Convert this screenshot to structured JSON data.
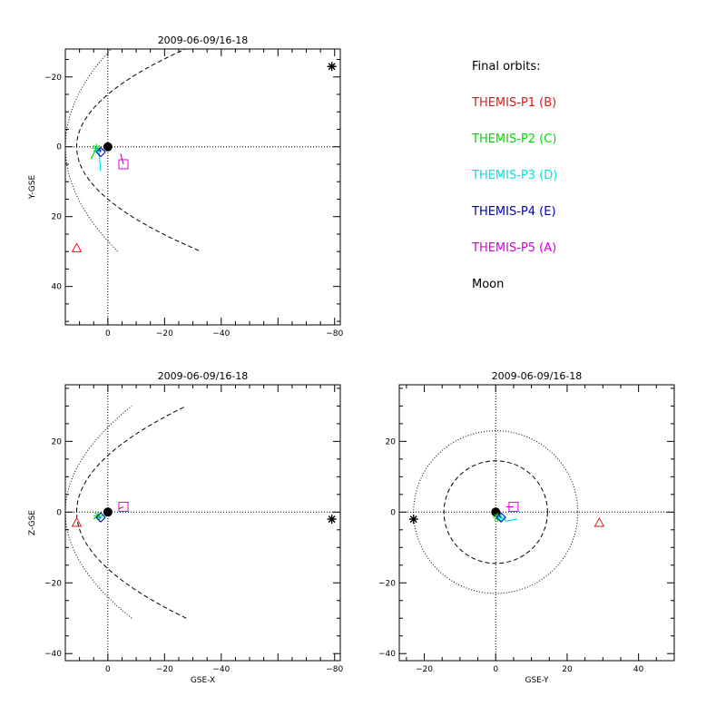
{
  "legend": {
    "title": "Final orbits:",
    "items": [
      {
        "label": "THEMIS-P1 (B)",
        "color": "#e31a1c"
      },
      {
        "label": "THEMIS-P2 (C)",
        "color": "#00dd00"
      },
      {
        "label": "THEMIS-P3 (D)",
        "color": "#00e5e5"
      },
      {
        "label": "THEMIS-P4 (E)",
        "color": "#0000c8"
      },
      {
        "label": "THEMIS-P5 (A)",
        "color": "#dd00dd"
      },
      {
        "label": "Moon",
        "color": "#000000"
      }
    ]
  },
  "chart_data": [
    {
      "type": "scatter",
      "title": "2009-06-09/16-18",
      "xlabel": "",
      "ylabel": "Y-GSE",
      "xlim": [
        15,
        -82
      ],
      "ylim": [
        -28,
        51
      ],
      "x_reversed": true,
      "y_reversed": true,
      "xticks": [
        0,
        -20,
        -40,
        -80
      ],
      "yticks": [
        -20,
        0,
        20,
        40
      ],
      "grid": false,
      "earth": [
        0,
        0
      ],
      "boundaries": [
        {
          "kind": "bow-shock",
          "style": "dotted",
          "nose": 15,
          "flank_at_earth": 27
        },
        {
          "kind": "magnetopause",
          "style": "dashed",
          "nose": 11,
          "flank_at_earth": 15
        }
      ],
      "series": [
        {
          "name": "THEMIS-P1 (B)",
          "marker": "triangle",
          "color": "#e31a1c",
          "points": [
            [
              11,
              29
            ]
          ]
        },
        {
          "name": "THEMIS-P2 (C)",
          "marker": "asterisk",
          "color": "#00dd00",
          "points": [
            [
              4,
              0.5
            ]
          ],
          "track": [
            [
              6,
              3.5
            ],
            [
              5,
              2
            ],
            [
              4,
              0.5
            ]
          ]
        },
        {
          "name": "THEMIS-P3 (D)",
          "marker": "cross",
          "color": "#00e5e5",
          "points": [
            [
              3,
              1
            ]
          ],
          "track": [
            [
              4,
              0
            ],
            [
              3,
              3
            ],
            [
              2.5,
              7
            ]
          ]
        },
        {
          "name": "THEMIS-P4 (E)",
          "marker": "diamond",
          "color": "#0000c8",
          "points": [
            [
              2.5,
              1.5
            ]
          ],
          "track": [
            [
              3,
              0.5
            ],
            [
              2.5,
              1.5
            ]
          ]
        },
        {
          "name": "THEMIS-P5 (A)",
          "marker": "square",
          "color": "#dd00dd",
          "points": [
            [
              -5.5,
              5
            ]
          ],
          "track": [
            [
              -4.5,
              2
            ],
            [
              -5.5,
              5
            ]
          ]
        },
        {
          "name": "Moon",
          "marker": "star",
          "color": "#000000",
          "points": [
            [
              -79,
              -23
            ]
          ]
        }
      ]
    },
    {
      "type": "scatter",
      "title": "2009-06-09/16-18",
      "xlabel": "GSE-X",
      "ylabel": "Z-GSE",
      "xlim": [
        15,
        -82
      ],
      "ylim": [
        -42,
        36
      ],
      "x_reversed": true,
      "y_reversed": false,
      "xticks": [
        0,
        -20,
        -40,
        -80
      ],
      "yticks": [
        -40,
        -20,
        0,
        20
      ],
      "grid": false,
      "earth": [
        0,
        0
      ],
      "boundaries": [
        {
          "kind": "bow-shock",
          "style": "dotted",
          "nose": 15,
          "flank_at_earth": 24
        },
        {
          "kind": "magnetopause",
          "style": "dashed",
          "nose": 11,
          "flank_at_earth": 16
        }
      ],
      "series": [
        {
          "name": "THEMIS-P1 (B)",
          "marker": "triangle",
          "color": "#e31a1c",
          "points": [
            [
              11,
              -3
            ]
          ]
        },
        {
          "name": "THEMIS-P2 (C)",
          "marker": "asterisk",
          "color": "#00dd00",
          "points": [
            [
              3.5,
              -1
            ]
          ],
          "track": [
            [
              5,
              -2
            ],
            [
              3.5,
              -1
            ]
          ]
        },
        {
          "name": "THEMIS-P3 (D)",
          "marker": "cross",
          "color": "#00e5e5",
          "points": [
            [
              3,
              -1.5
            ]
          ],
          "track": [
            [
              4,
              -2
            ],
            [
              3,
              -1.5
            ]
          ]
        },
        {
          "name": "THEMIS-P4 (E)",
          "marker": "diamond",
          "color": "#0000c8",
          "points": [
            [
              2.5,
              -1.5
            ]
          ],
          "track": [
            [
              3,
              -1.5
            ],
            [
              2.5,
              -1.5
            ]
          ]
        },
        {
          "name": "THEMIS-P5 (A)",
          "marker": "square",
          "color": "#dd00dd",
          "points": [
            [
              -5.5,
              1.5
            ]
          ],
          "track": [
            [
              -4,
              1
            ],
            [
              -5.5,
              1.5
            ]
          ]
        },
        {
          "name": "Moon",
          "marker": "star",
          "color": "#000000",
          "points": [
            [
              -79,
              -2
            ]
          ]
        }
      ]
    },
    {
      "type": "scatter",
      "title": "2009-06-09/16-18",
      "xlabel": "GSE-Y",
      "ylabel": "",
      "xlim": [
        -27,
        50
      ],
      "ylim": [
        -42,
        36
      ],
      "x_reversed": false,
      "y_reversed": false,
      "xticks": [
        -20,
        0,
        20,
        40
      ],
      "yticks": [
        -40,
        -20,
        0,
        20
      ],
      "grid": false,
      "earth": [
        0,
        0
      ],
      "circles": [
        {
          "kind": "bow-shock",
          "style": "dotted",
          "radius": 23
        },
        {
          "kind": "magnetopause",
          "style": "dashed",
          "radius": 14.5
        }
      ],
      "series": [
        {
          "name": "THEMIS-P1 (B)",
          "marker": "triangle",
          "color": "#e31a1c",
          "points": [
            [
              29,
              -3
            ]
          ]
        },
        {
          "name": "THEMIS-P2 (C)",
          "marker": "asterisk",
          "color": "#00dd00",
          "points": [
            [
              0.5,
              -1.5
            ]
          ],
          "track": [
            [
              0.2,
              -0.5
            ],
            [
              0.5,
              -1.5
            ]
          ]
        },
        {
          "name": "THEMIS-P3 (D)",
          "marker": "cross",
          "color": "#00e5e5",
          "points": [
            [
              1.5,
              -1.5
            ]
          ],
          "track": [
            [
              0.5,
              -1
            ],
            [
              3,
              -2.5
            ],
            [
              6,
              -2
            ]
          ]
        },
        {
          "name": "THEMIS-P4 (E)",
          "marker": "diamond",
          "color": "#0000c8",
          "points": [
            [
              1.5,
              -1.5
            ]
          ],
          "track": [
            [
              1,
              -1
            ],
            [
              1.5,
              -1.5
            ]
          ]
        },
        {
          "name": "THEMIS-P5 (A)",
          "marker": "square",
          "color": "#dd00dd",
          "points": [
            [
              5,
              1.5
            ]
          ],
          "track": [
            [
              3,
              1.5
            ],
            [
              5,
              1.5
            ]
          ]
        },
        {
          "name": "Moon",
          "marker": "star",
          "color": "#000000",
          "points": [
            [
              -23,
              -2
            ]
          ]
        }
      ]
    }
  ]
}
